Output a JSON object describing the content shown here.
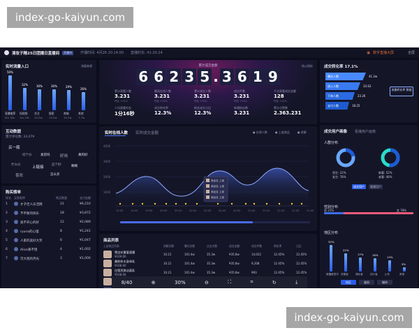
{
  "watermark": {
    "top": "index-go-kaiyun.com",
    "bottom": "index-go-kaiyun.com"
  },
  "topbar": {
    "title": "清妆子精25日团播日直播间",
    "tag": "开播中",
    "meta1": "开播时间: 4月26 20:14:00",
    "meta2": "直播时长: 41:20:24",
    "right_label": "数字直播大屏",
    "fullscreen": "全屏"
  },
  "flow": {
    "title": "实时流量入口",
    "more": "流量来源",
    "bars": [
      {
        "label": "直播推荐",
        "pct": "50%",
        "value": 0.5
      },
      {
        "label": "短视频",
        "pct": "32%",
        "value": 0.32
      },
      {
        "label": "关注",
        "pct": "30%",
        "value": 0.3
      },
      {
        "label": "搜索",
        "pct": "30%",
        "value": 0.3
      },
      {
        "label": "商城",
        "pct": "29%",
        "value": 0.29
      },
      {
        "label": "其他",
        "pct": "26%",
        "value": 0.26
      }
    ],
    "sub": [
      "直播流量",
      "Live/头条",
      "其他",
      "抖音",
      "流量来源",
      "其他来源"
    ],
    "vals": [
      "5m 30s",
      "1m 23s",
      "10.2w",
      "13.2w",
      "15.2w",
      "7.7w"
    ]
  },
  "interact": {
    "title": "互动数据",
    "sub": "累计评论数: 24,079",
    "words": [
      "买一瓶",
      "问个价",
      "发货吗",
      "好用",
      "真的好",
      "什么价",
      "上链接",
      "这个好",
      "啊啊",
      "喜欢",
      "怎么买"
    ]
  },
  "ranking": {
    "title": "购买榜单",
    "head": [
      "排名",
      "买家昵称",
      "购买数量",
      "支付金额"
    ],
    "rows": [
      {
        "rank": "1",
        "name": "才子佳人乐活网",
        "count": "21",
        "amount": "¥6,210"
      },
      {
        "rank": "2",
        "name": "不平衡的快乐",
        "count": "18",
        "amount": "¥3,872"
      },
      {
        "rank": "3",
        "name": "竟不开心的好",
        "count": "12",
        "amount": "¥2,089"
      },
      {
        "rank": "4",
        "name": "ryuna的心理",
        "count": "8",
        "amount": "¥1,241"
      },
      {
        "rank": "5",
        "name": "人家的美好大笑",
        "count": "6",
        "amount": "¥1,047"
      },
      {
        "rank": "6",
        "name": "Alice真不错",
        "count": "4",
        "amount": "¥1,002"
      },
      {
        "rank": "7",
        "name": "可大抱的月光",
        "count": "3",
        "amount": "¥1,000"
      }
    ]
  },
  "gmv": {
    "label": "累计成交金额",
    "digits": [
      "6",
      "6",
      "2",
      "3",
      "5",
      ".",
      "3",
      "6",
      "1",
      "9"
    ],
    "more": "核心指标",
    "kpis": [
      {
        "label": "累计观看人数",
        "value": "3.231",
        "sub": "环比 +12%"
      },
      {
        "label": "最高在线人数",
        "value": "3.231",
        "sub": "环比 +12%"
      },
      {
        "label": "累计成交人数",
        "value": "3.231",
        "sub": "环比 +12%"
      },
      {
        "label": "成交件数",
        "value": "3.231",
        "sub": "环比 +12%"
      },
      {
        "label": "千次观看成交金额",
        "value": "128",
        "sub": "环比 +12%"
      },
      {
        "label": "人均观看时长",
        "value": "1分16秒",
        "sub": ""
      },
      {
        "label": "成交转化率",
        "value": "12.3%",
        "sub": ""
      },
      {
        "label": "粉丝成交占比",
        "value": "12.3%",
        "sub": ""
      },
      {
        "label": "新增粉丝数",
        "value": "3.231",
        "sub": ""
      },
      {
        "label": "累计点赞数",
        "value": "2.363.231",
        "sub": ""
      }
    ]
  },
  "online": {
    "tab1": "实时在线人数",
    "tab2": "实时成交金额",
    "legend1": "在线人数",
    "legend2": "上架商品",
    "legend3": "讲解",
    "yticks": [
      "4000",
      "3000",
      "2000",
      "1000"
    ],
    "xticks": [
      "19:30",
      "19:40",
      "19:50",
      "20:00",
      "20:10",
      "20:20",
      "20:30",
      "20:40",
      "20:50",
      "21:00",
      "21:10",
      "21:20",
      "21:30",
      "21:40"
    ],
    "tips": [
      "商品名 上架",
      "商品名 上架",
      "商品名 上架",
      "商品名 上架"
    ]
  },
  "products": {
    "title": "商品列表",
    "head": [
      "上架商品列表",
      "讲解次数",
      "曝光次数",
      "点击次数",
      "成交金额",
      "成交件数",
      "转化率",
      "占比"
    ],
    "rows": [
      {
        "name": "雪白花蜜爱面膜",
        "price": "¥169.00",
        "a": "10.21",
        "b": "101.4w",
        "c": "35.3w",
        "d": "¥35.8w",
        "e": "14,022",
        "f": "12.45%",
        "g": "12.45%"
      },
      {
        "name": "美肤补水身体乳",
        "price": "¥168.00",
        "a": "10.21",
        "b": "101.4w",
        "c": "35.3w",
        "d": "¥35.8w",
        "e": "9,208",
        "f": "12.45%",
        "g": "12.45%"
      },
      {
        "name": "白皙亮肤洁面乳",
        "price": "¥168.00",
        "a": "10.21",
        "b": "101.4w",
        "c": "35.3w",
        "d": "¥35.8w",
        "e": "993",
        "f": "12.45%",
        "g": "12.45%"
      },
      {
        "name": "美丽大方SPF50防",
        "price": "¥168.00",
        "a": "10.21",
        "b": "101.4w",
        "c": "35.3w",
        "d": "¥35.8w",
        "e": "421",
        "f": "12.45%",
        "g": "12.45%"
      },
      {
        "name": "",
        "price": "",
        "a": "",
        "b": "",
        "c": "",
        "d": "",
        "e": "",
        "f": "",
        "g": ""
      }
    ]
  },
  "conversion": {
    "title": "成交转化率",
    "pct": "17.1%",
    "funnel": [
      {
        "label": "曝光人数",
        "value": "41.2w"
      },
      {
        "label": "进入人数",
        "value": "33.63"
      },
      {
        "label": "下单人数",
        "value": "23.26"
      },
      {
        "label": "支付人数",
        "value": "18.25"
      }
    ],
    "btn": "流量转化率 数据"
  },
  "portrait": {
    "title": "成交用户画像",
    "tab": "看播用户画像",
    "gender_title": "人群分布",
    "g1": {
      "a": "男生: 22%",
      "b": "女生: 78%"
    },
    "g2": {
      "a": "新客: 52%",
      "b": "老客: 48%"
    },
    "btn1": "成交用户",
    "btn2": "看播用户",
    "age_title": "性别分布",
    "age_a": "男 22%",
    "age_b": "女 78%",
    "region_title": "地区分布",
    "region_bars": [
      {
        "label": "新疆维吾尔",
        "pct": "32%",
        "value": 0.32
      },
      {
        "label": "安徽省",
        "pct": "22%",
        "value": 0.22
      },
      {
        "label": "湖北省",
        "pct": "17%",
        "value": 0.17
      },
      {
        "label": "四川省",
        "pct": "16%",
        "value": 0.16
      },
      {
        "label": "山东",
        "pct": "13%",
        "value": 0.13
      },
      {
        "label": "其他",
        "pct": "5%",
        "value": 0.05
      }
    ],
    "region_btns": [
      "地区",
      "省份",
      "城市"
    ]
  },
  "bottombar": {
    "page": "8/40",
    "zoom": "30%"
  },
  "colors": {
    "bg": "#0b0d1c",
    "panel": "#141628",
    "accent": "#2b5ee8",
    "gold": "#ffc83a"
  }
}
